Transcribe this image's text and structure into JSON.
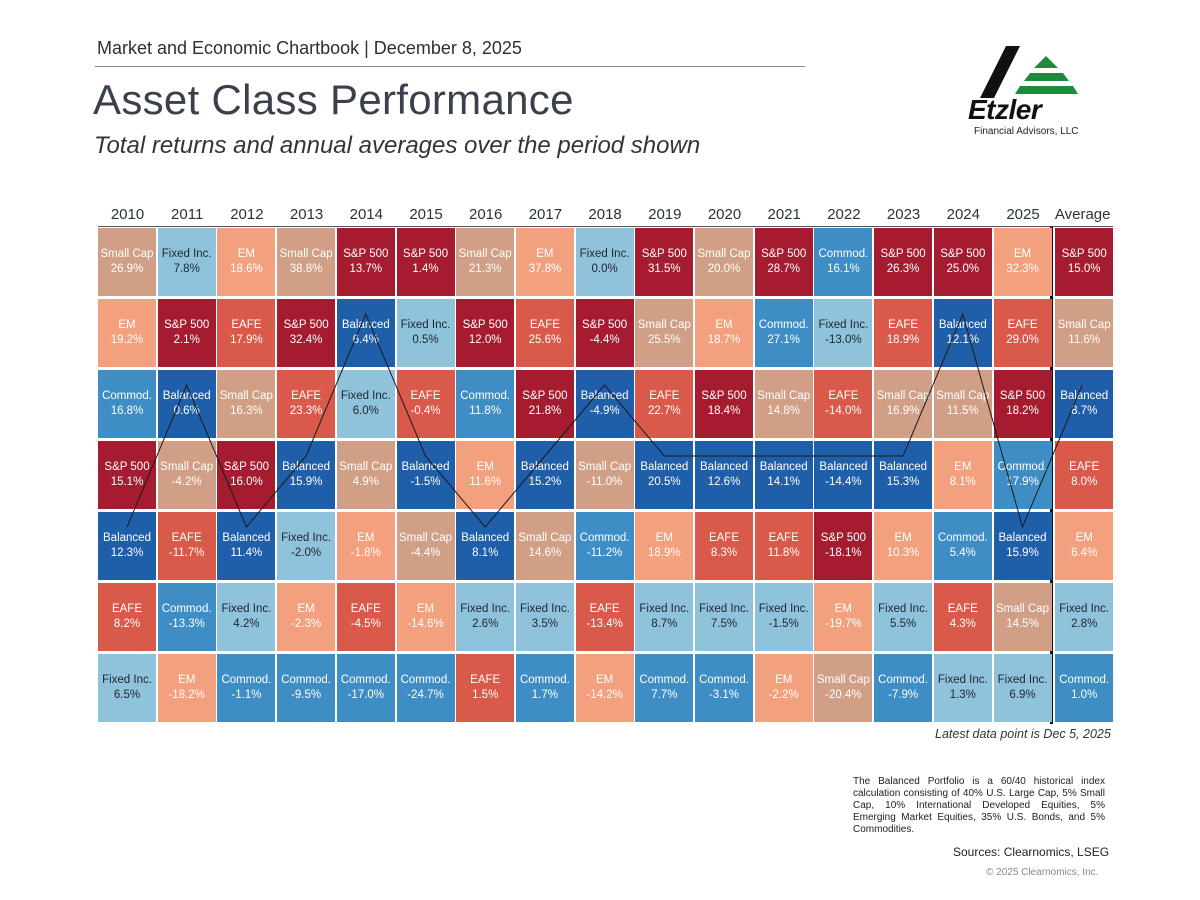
{
  "header": {
    "top_line": "Market and Economic Chartbook | December 8, 2025",
    "title": "Asset Class Performance",
    "subtitle": "Total returns and annual averages over the period shown"
  },
  "logo": {
    "name": "Etzler",
    "sub": "Financial Advisors, LLC"
  },
  "colors": {
    "S&P 500": "#a51c30",
    "Small Cap": "#d09f86",
    "EM": "#f2a07e",
    "Fixed Inc.": "#8fc3dc",
    "Commod.": "#3e8dc5",
    "Balanced": "#1f5ea8",
    "EAFE": "#d9594a"
  },
  "chart_data": {
    "type": "table",
    "title": "Asset Class Performance",
    "columns": [
      "2010",
      "2011",
      "2012",
      "2013",
      "2014",
      "2015",
      "2016",
      "2017",
      "2018",
      "2019",
      "2020",
      "2021",
      "2022",
      "2023",
      "2024",
      "2025",
      "Average"
    ],
    "ranked_cells": [
      [
        {
          "n": "Small Cap",
          "v": "26.9%"
        },
        {
          "n": "EM",
          "v": "19.2%"
        },
        {
          "n": "Commod.",
          "v": "16.8%"
        },
        {
          "n": "S&P 500",
          "v": "15.1%"
        },
        {
          "n": "Balanced",
          "v": "12.3%"
        },
        {
          "n": "EAFE",
          "v": "8.2%"
        },
        {
          "n": "Fixed Inc.",
          "v": "6.5%"
        }
      ],
      [
        {
          "n": "Fixed Inc.",
          "v": "7.8%"
        },
        {
          "n": "S&P 500",
          "v": "2.1%"
        },
        {
          "n": "Balanced",
          "v": "0.6%"
        },
        {
          "n": "Small Cap",
          "v": "-4.2%"
        },
        {
          "n": "EAFE",
          "v": "-11.7%"
        },
        {
          "n": "Commod.",
          "v": "-13.3%"
        },
        {
          "n": "EM",
          "v": "-18.2%"
        }
      ],
      [
        {
          "n": "EM",
          "v": "18.6%"
        },
        {
          "n": "EAFE",
          "v": "17.9%"
        },
        {
          "n": "Small Cap",
          "v": "16.3%"
        },
        {
          "n": "S&P 500",
          "v": "16.0%"
        },
        {
          "n": "Balanced",
          "v": "11.4%"
        },
        {
          "n": "Fixed Inc.",
          "v": "4.2%"
        },
        {
          "n": "Commod.",
          "v": "-1.1%"
        }
      ],
      [
        {
          "n": "Small Cap",
          "v": "38.8%"
        },
        {
          "n": "S&P 500",
          "v": "32.4%"
        },
        {
          "n": "EAFE",
          "v": "23.3%"
        },
        {
          "n": "Balanced",
          "v": "15.9%"
        },
        {
          "n": "Fixed Inc.",
          "v": "-2.0%"
        },
        {
          "n": "EM",
          "v": "-2.3%"
        },
        {
          "n": "Commod.",
          "v": "-9.5%"
        }
      ],
      [
        {
          "n": "S&P 500",
          "v": "13.7%"
        },
        {
          "n": "Balanced",
          "v": "6.4%"
        },
        {
          "n": "Fixed Inc.",
          "v": "6.0%"
        },
        {
          "n": "Small Cap",
          "v": "4.9%"
        },
        {
          "n": "EM",
          "v": "-1.8%"
        },
        {
          "n": "EAFE",
          "v": "-4.5%"
        },
        {
          "n": "Commod.",
          "v": "-17.0%"
        }
      ],
      [
        {
          "n": "S&P 500",
          "v": "1.4%"
        },
        {
          "n": "Fixed Inc.",
          "v": "0.5%"
        },
        {
          "n": "EAFE",
          "v": "-0.4%"
        },
        {
          "n": "Balanced",
          "v": "-1.5%"
        },
        {
          "n": "Small Cap",
          "v": "-4.4%"
        },
        {
          "n": "EM",
          "v": "-14.6%"
        },
        {
          "n": "Commod.",
          "v": "-24.7%"
        }
      ],
      [
        {
          "n": "Small Cap",
          "v": "21.3%"
        },
        {
          "n": "S&P 500",
          "v": "12.0%"
        },
        {
          "n": "Commod.",
          "v": "11.8%"
        },
        {
          "n": "EM",
          "v": "11.6%"
        },
        {
          "n": "Balanced",
          "v": "8.1%"
        },
        {
          "n": "Fixed Inc.",
          "v": "2.6%"
        },
        {
          "n": "EAFE",
          "v": "1.5%"
        }
      ],
      [
        {
          "n": "EM",
          "v": "37.8%"
        },
        {
          "n": "EAFE",
          "v": "25.6%"
        },
        {
          "n": "S&P 500",
          "v": "21.8%"
        },
        {
          "n": "Balanced",
          "v": "15.2%"
        },
        {
          "n": "Small Cap",
          "v": "14.6%"
        },
        {
          "n": "Fixed Inc.",
          "v": "3.5%"
        },
        {
          "n": "Commod.",
          "v": "1.7%"
        }
      ],
      [
        {
          "n": "Fixed Inc.",
          "v": "0.0%"
        },
        {
          "n": "S&P 500",
          "v": "-4.4%"
        },
        {
          "n": "Balanced",
          "v": "-4.9%"
        },
        {
          "n": "Small Cap",
          "v": "-11.0%"
        },
        {
          "n": "Commod.",
          "v": "-11.2%"
        },
        {
          "n": "EAFE",
          "v": "-13.4%"
        },
        {
          "n": "EM",
          "v": "-14.2%"
        }
      ],
      [
        {
          "n": "S&P 500",
          "v": "31.5%"
        },
        {
          "n": "Small Cap",
          "v": "25.5%"
        },
        {
          "n": "EAFE",
          "v": "22.7%"
        },
        {
          "n": "Balanced",
          "v": "20.5%"
        },
        {
          "n": "EM",
          "v": "18.9%"
        },
        {
          "n": "Fixed Inc.",
          "v": "8.7%"
        },
        {
          "n": "Commod.",
          "v": "7.7%"
        }
      ],
      [
        {
          "n": "Small Cap",
          "v": "20.0%"
        },
        {
          "n": "EM",
          "v": "18.7%"
        },
        {
          "n": "S&P 500",
          "v": "18.4%"
        },
        {
          "n": "Balanced",
          "v": "12.6%"
        },
        {
          "n": "EAFE",
          "v": "8.3%"
        },
        {
          "n": "Fixed Inc.",
          "v": "7.5%"
        },
        {
          "n": "Commod.",
          "v": "-3.1%"
        }
      ],
      [
        {
          "n": "S&P 500",
          "v": "28.7%"
        },
        {
          "n": "Commod.",
          "v": "27.1%"
        },
        {
          "n": "Small Cap",
          "v": "14.8%"
        },
        {
          "n": "Balanced",
          "v": "14.1%"
        },
        {
          "n": "EAFE",
          "v": "11.8%"
        },
        {
          "n": "Fixed Inc.",
          "v": "-1.5%"
        },
        {
          "n": "EM",
          "v": "-2.2%"
        }
      ],
      [
        {
          "n": "Commod.",
          "v": "16.1%"
        },
        {
          "n": "Fixed Inc.",
          "v": "-13.0%"
        },
        {
          "n": "EAFE",
          "v": "-14.0%"
        },
        {
          "n": "Balanced",
          "v": "-14.4%"
        },
        {
          "n": "S&P 500",
          "v": "-18.1%"
        },
        {
          "n": "EM",
          "v": "-19.7%"
        },
        {
          "n": "Small Cap",
          "v": "-20.4%"
        }
      ],
      [
        {
          "n": "S&P 500",
          "v": "26.3%"
        },
        {
          "n": "EAFE",
          "v": "18.9%"
        },
        {
          "n": "Small Cap",
          "v": "16.9%"
        },
        {
          "n": "Balanced",
          "v": "15.3%"
        },
        {
          "n": "EM",
          "v": "10.3%"
        },
        {
          "n": "Fixed Inc.",
          "v": "5.5%"
        },
        {
          "n": "Commod.",
          "v": "-7.9%"
        }
      ],
      [
        {
          "n": "S&P 500",
          "v": "25.0%"
        },
        {
          "n": "Balanced",
          "v": "12.1%"
        },
        {
          "n": "Small Cap",
          "v": "11.5%"
        },
        {
          "n": "EM",
          "v": "8.1%"
        },
        {
          "n": "Commod.",
          "v": "5.4%"
        },
        {
          "n": "EAFE",
          "v": "4.3%"
        },
        {
          "n": "Fixed Inc.",
          "v": "1.3%"
        }
      ],
      [
        {
          "n": "EM",
          "v": "32.3%"
        },
        {
          "n": "EAFE",
          "v": "29.0%"
        },
        {
          "n": "S&P 500",
          "v": "18.2%"
        },
        {
          "n": "Commod.",
          "v": "17.9%"
        },
        {
          "n": "Balanced",
          "v": "15.9%"
        },
        {
          "n": "Small Cap",
          "v": "14.5%"
        },
        {
          "n": "Fixed Inc.",
          "v": "6.9%"
        }
      ],
      [
        {
          "n": "S&P 500",
          "v": "15.0%"
        },
        {
          "n": "Small Cap",
          "v": "11.6%"
        },
        {
          "n": "Balanced",
          "v": "8.7%"
        },
        {
          "n": "EAFE",
          "v": "8.0%"
        },
        {
          "n": "EM",
          "v": "6.4%"
        },
        {
          "n": "Fixed Inc.",
          "v": "2.8%"
        },
        {
          "n": "Commod.",
          "v": "1.0%"
        }
      ]
    ],
    "highlight_series": "Balanced"
  },
  "footer": {
    "latest": "Latest data point is Dec 5, 2025",
    "note": "The Balanced Portfolio is a 60/40 historical index calculation consisting of 40% U.S. Large Cap, 5% Small Cap, 10% International Developed Equities, 5% Emerging Market Equities, 35% U.S. Bonds, and 5% Commodities.",
    "sources": "Sources: Clearnomics, LSEG",
    "copyright": "© 2025 Clearnomics, Inc."
  }
}
